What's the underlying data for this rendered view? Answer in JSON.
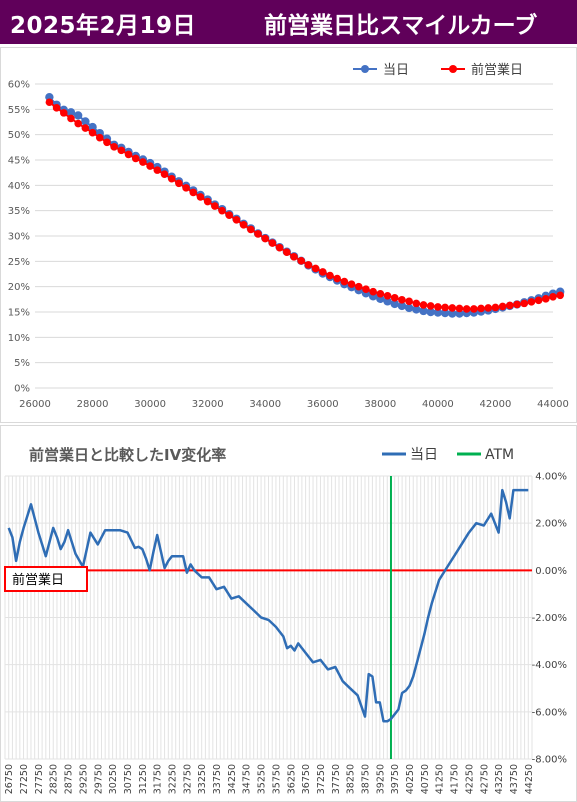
{
  "header": {
    "date": "2025年2月19日",
    "title": "前営業日比スマイルカーブ",
    "bg_color": "#60005a"
  },
  "chart_data": [
    {
      "type": "line",
      "title": "",
      "legend": {
        "position": "top-right",
        "items": [
          "当日",
          "前営業日"
        ]
      },
      "xlim": [
        26000,
        44000
      ],
      "ylim": [
        0,
        0.6
      ],
      "x_ticks": [
        "26000",
        "28000",
        "30000",
        "32000",
        "34000",
        "36000",
        "38000",
        "40000",
        "42000",
        "44000"
      ],
      "y_ticks": [
        "0%",
        "5%",
        "10%",
        "15%",
        "20%",
        "25%",
        "30%",
        "35%",
        "40%",
        "45%",
        "50%",
        "55%",
        "60%"
      ],
      "grid": true,
      "x": [
        26500,
        26750,
        27000,
        27250,
        27500,
        27750,
        28000,
        28250,
        28500,
        28750,
        29000,
        29250,
        29500,
        29750,
        30000,
        30250,
        30500,
        30750,
        31000,
        31250,
        31500,
        31750,
        32000,
        32250,
        32500,
        32750,
        33000,
        33250,
        33500,
        33750,
        34000,
        34250,
        34500,
        34750,
        35000,
        35250,
        35500,
        35750,
        36000,
        36250,
        36500,
        36750,
        37000,
        37250,
        37500,
        37750,
        38000,
        38250,
        38500,
        38750,
        39000,
        39250,
        39500,
        39750,
        40000,
        40250,
        40500,
        40750,
        41000,
        41250,
        41500,
        41750,
        42000,
        42250,
        42500,
        42750,
        43000,
        43250,
        43500,
        43750,
        44000,
        44250
      ],
      "series": [
        {
          "name": "当日",
          "color": "#4472c4",
          "values": [
            0.574,
            0.559,
            0.549,
            0.544,
            0.538,
            0.526,
            0.515,
            0.503,
            0.492,
            0.48,
            0.474,
            0.466,
            0.458,
            0.451,
            0.444,
            0.436,
            0.427,
            0.417,
            0.408,
            0.399,
            0.39,
            0.381,
            0.372,
            0.362,
            0.353,
            0.343,
            0.334,
            0.324,
            0.315,
            0.305,
            0.296,
            0.287,
            0.278,
            0.269,
            0.26,
            0.251,
            0.242,
            0.234,
            0.226,
            0.219,
            0.212,
            0.205,
            0.199,
            0.193,
            0.187,
            0.181,
            0.176,
            0.171,
            0.166,
            0.162,
            0.158,
            0.155,
            0.152,
            0.15,
            0.149,
            0.148,
            0.147,
            0.147,
            0.148,
            0.149,
            0.151,
            0.153,
            0.156,
            0.159,
            0.162,
            0.165,
            0.169,
            0.173,
            0.177,
            0.182,
            0.186,
            0.19
          ]
        },
        {
          "name": "前営業日",
          "color": "#ff0000",
          "values": [
            0.564,
            0.553,
            0.543,
            0.532,
            0.522,
            0.513,
            0.504,
            0.494,
            0.485,
            0.476,
            0.469,
            0.461,
            0.453,
            0.446,
            0.438,
            0.43,
            0.422,
            0.413,
            0.404,
            0.395,
            0.386,
            0.377,
            0.368,
            0.359,
            0.35,
            0.341,
            0.332,
            0.322,
            0.313,
            0.304,
            0.295,
            0.286,
            0.277,
            0.268,
            0.259,
            0.251,
            0.243,
            0.236,
            0.229,
            0.222,
            0.216,
            0.21,
            0.205,
            0.2,
            0.195,
            0.19,
            0.186,
            0.182,
            0.178,
            0.174,
            0.171,
            0.167,
            0.164,
            0.162,
            0.16,
            0.159,
            0.158,
            0.157,
            0.156,
            0.156,
            0.157,
            0.158,
            0.159,
            0.161,
            0.163,
            0.165,
            0.167,
            0.17,
            0.173,
            0.176,
            0.18,
            0.183
          ]
        }
      ]
    },
    {
      "type": "line",
      "title": "前営業日と比較したIV変化率",
      "legend": {
        "position": "top-right",
        "items": [
          "当日",
          "ATM"
        ]
      },
      "ylim": [
        -0.08,
        0.04
      ],
      "y_ticks": [
        "4.00%",
        "2.00%",
        "0.00%",
        "-2.00%",
        "-4.00%",
        "-6.00%",
        "-8.00%"
      ],
      "x_ticks": [
        "26750",
        "27250",
        "27750",
        "28250",
        "28750",
        "29250",
        "29750",
        "30250",
        "30750",
        "31250",
        "31750",
        "32250",
        "32750",
        "33250",
        "33750",
        "34250",
        "34750",
        "35250",
        "35750",
        "36250",
        "36750",
        "37250",
        "37750",
        "38250",
        "38750",
        "39250",
        "39750",
        "40250",
        "40750",
        "41250",
        "41750",
        "42250",
        "42750",
        "43250",
        "43750",
        "44250"
      ],
      "grid": true,
      "baseline_label": "前営業日",
      "atm_x": 39625,
      "atm_color": "#00b050",
      "baseline_color": "#ff0000",
      "x": [
        26750,
        26875,
        27000,
        27125,
        27250,
        27375,
        27500,
        27625,
        27750,
        27875,
        28000,
        28125,
        28250,
        28375,
        28500,
        28625,
        28750,
        28875,
        29000,
        29250,
        29500,
        29750,
        30000,
        30250,
        30500,
        30750,
        31000,
        31125,
        31250,
        31375,
        31500,
        31625,
        31750,
        31875,
        32000,
        32125,
        32250,
        32375,
        32500,
        32625,
        32750,
        32875,
        33000,
        33250,
        33500,
        33750,
        34000,
        34250,
        34500,
        34750,
        35000,
        35250,
        35500,
        35750,
        36000,
        36125,
        36250,
        36375,
        36500,
        36750,
        37000,
        37250,
        37500,
        37750,
        38000,
        38250,
        38500,
        38750,
        38875,
        39000,
        39125,
        39250,
        39375,
        39500,
        39625,
        39750,
        39875,
        40000,
        40125,
        40250,
        40375,
        40500,
        40625,
        40750,
        40875,
        41000,
        41250,
        41500,
        41750,
        42000,
        42250,
        42500,
        42750,
        43000,
        43250,
        43375,
        43500,
        43625,
        43750,
        43875,
        44000,
        44125,
        44250
      ],
      "series": [
        {
          "name": "当日",
          "color": "#2f6db5",
          "values": [
            0.018,
            0.014,
            0.004,
            0.012,
            0.018,
            0.023,
            0.028,
            0.022,
            0.016,
            0.011,
            0.006,
            0.012,
            0.018,
            0.014,
            0.009,
            0.012,
            0.017,
            0.012,
            0.007,
            0.0015,
            0.016,
            0.011,
            0.017,
            0.017,
            0.017,
            0.016,
            0.0095,
            0.01,
            0.009,
            0.005,
            0.0,
            0.008,
            0.015,
            0.008,
            0.001,
            0.004,
            0.006,
            0.006,
            0.006,
            0.006,
            -0.001,
            0.0025,
            0.0,
            -0.003,
            -0.003,
            -0.008,
            -0.007,
            -0.012,
            -0.011,
            -0.014,
            -0.017,
            -0.02,
            -0.021,
            -0.024,
            -0.028,
            -0.033,
            -0.032,
            -0.034,
            -0.031,
            -0.035,
            -0.039,
            -0.038,
            -0.042,
            -0.041,
            -0.047,
            -0.05,
            -0.053,
            -0.062,
            -0.044,
            -0.045,
            -0.056,
            -0.056,
            -0.064,
            -0.064,
            -0.063,
            -0.061,
            -0.059,
            -0.052,
            -0.051,
            -0.049,
            -0.045,
            -0.039,
            -0.033,
            -0.027,
            -0.02,
            -0.014,
            -0.004,
            0.001,
            0.006,
            0.011,
            0.016,
            0.02,
            0.019,
            0.024,
            0.016,
            0.034,
            0.029,
            0.022,
            0.034,
            0.034,
            0.034,
            0.034,
            0.034
          ]
        },
        {
          "name": "ATM",
          "color": "#00b050"
        }
      ]
    }
  ]
}
